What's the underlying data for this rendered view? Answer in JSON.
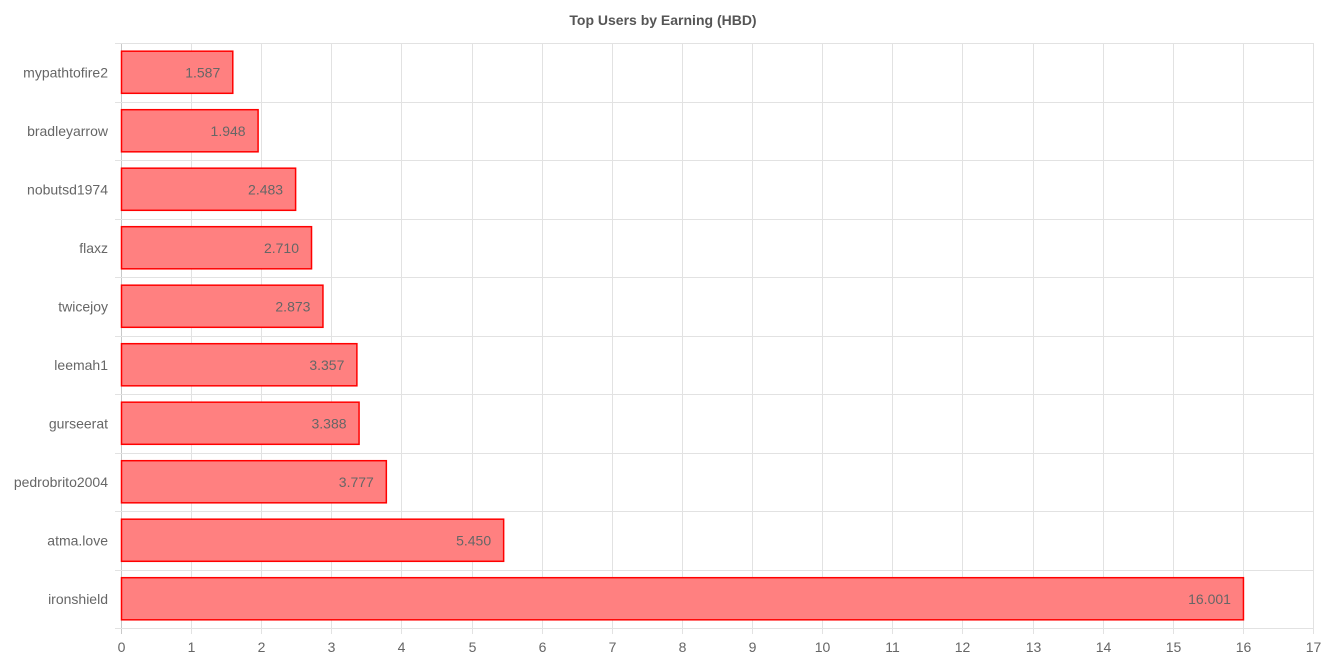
{
  "chart_data": {
    "type": "bar",
    "orientation": "horizontal",
    "title": "Top Users by Earning (HBD)",
    "xlabel": "",
    "ylabel": "",
    "xlim": [
      0,
      17
    ],
    "x_ticks": [
      0,
      1,
      2,
      3,
      4,
      5,
      6,
      7,
      8,
      9,
      10,
      11,
      12,
      13,
      14,
      15,
      16,
      17
    ],
    "categories": [
      "mypathtofire2",
      "bradleyarrow",
      "nobutsd1974",
      "flaxz",
      "twicejoy",
      "leemah1",
      "gurseerat",
      "pedrobrito2004",
      "atma.love",
      "ironshield"
    ],
    "values": [
      1.587,
      1.948,
      2.483,
      2.71,
      2.873,
      3.357,
      3.388,
      3.777,
      5.45,
      16.001
    ],
    "value_labels": [
      "1.587",
      "1.948",
      "2.483",
      "2.710",
      "2.873",
      "3.357",
      "3.388",
      "3.777",
      "5.450",
      "16.001"
    ],
    "grid": true,
    "bar_fill": "#ff8080",
    "bar_stroke": "#ff0000"
  }
}
